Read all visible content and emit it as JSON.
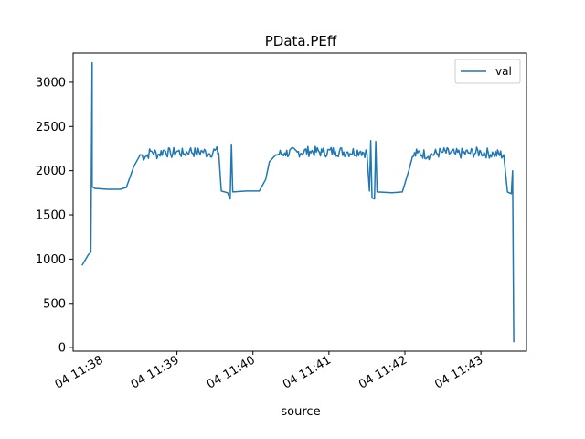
{
  "chart_data": {
    "type": "line",
    "title": "PData.PEff",
    "xlabel": "source",
    "ylabel": "",
    "xlim": [
      "04 11:37:38",
      "04 11:43:36"
    ],
    "ylim": [
      -40,
      3330
    ],
    "yticks": [
      0,
      500,
      1000,
      1500,
      2000,
      2500,
      3000
    ],
    "xticks": [
      {
        "label": "04 11:38",
        "t": "11:38:00"
      },
      {
        "label": "04 11:39",
        "t": "11:39:00"
      },
      {
        "label": "04 11:40",
        "t": "11:40:00"
      },
      {
        "label": "04 11:41",
        "t": "11:41:00"
      },
      {
        "label": "04 11:42",
        "t": "11:42:00"
      },
      {
        "label": "04 11:43",
        "t": "11:43:00"
      }
    ],
    "grid": false,
    "legend": "top-right",
    "series": [
      {
        "name": "val",
        "color": "#1f77b4",
        "points": [
          [
            "11:37:45",
            930
          ],
          [
            "11:37:50",
            1050
          ],
          [
            "11:37:52",
            1080
          ],
          [
            "11:37:53",
            3220
          ],
          [
            "11:37:53",
            1820
          ],
          [
            "11:37:55",
            1800
          ],
          [
            "11:38:05",
            1790
          ],
          [
            "11:38:15",
            1790
          ],
          [
            "11:38:20",
            1810
          ],
          [
            "11:38:26",
            2050
          ],
          [
            "11:38:31",
            2180
          ],
          [
            "11:38:35",
            2160
          ],
          [
            "11:38:40",
            2220
          ],
          [
            "11:38:45",
            2180
          ],
          [
            "11:38:50",
            2230
          ],
          [
            "11:38:55",
            2190
          ],
          [
            "11:39:00",
            2220
          ],
          [
            "11:39:05",
            2190
          ],
          [
            "11:39:10",
            2230
          ],
          [
            "11:39:15",
            2200
          ],
          [
            "11:39:20",
            2220
          ],
          [
            "11:39:25",
            2190
          ],
          [
            "11:39:30",
            2230
          ],
          [
            "11:39:33",
            2200
          ],
          [
            "11:39:35",
            1770
          ],
          [
            "11:39:40",
            1750
          ],
          [
            "11:39:42",
            1680
          ],
          [
            "11:39:43",
            2300
          ],
          [
            "11:39:44",
            1760
          ],
          [
            "11:39:55",
            1770
          ],
          [
            "11:40:05",
            1770
          ],
          [
            "11:40:10",
            1900
          ],
          [
            "11:40:13",
            2100
          ],
          [
            "11:40:18",
            2180
          ],
          [
            "11:40:25",
            2200
          ],
          [
            "11:40:35",
            2210
          ],
          [
            "11:40:45",
            2220
          ],
          [
            "11:40:55",
            2210
          ],
          [
            "11:41:05",
            2220
          ],
          [
            "11:41:15",
            2210
          ],
          [
            "11:41:25",
            2220
          ],
          [
            "11:41:30",
            2200
          ],
          [
            "11:41:32",
            1770
          ],
          [
            "11:41:33",
            2340
          ],
          [
            "11:41:34",
            1690
          ],
          [
            "11:41:36",
            1680
          ],
          [
            "11:41:37",
            2330
          ],
          [
            "11:41:38",
            1760
          ],
          [
            "11:41:50",
            1750
          ],
          [
            "11:41:58",
            1760
          ],
          [
            "11:42:03",
            2000
          ],
          [
            "11:42:06",
            2160
          ],
          [
            "11:42:10",
            2200
          ],
          [
            "11:42:20",
            2180
          ],
          [
            "11:42:30",
            2210
          ],
          [
            "11:42:40",
            2190
          ],
          [
            "11:42:50",
            2200
          ],
          [
            "11:43:00",
            2210
          ],
          [
            "11:43:10",
            2190
          ],
          [
            "11:43:18",
            2180
          ],
          [
            "11:43:21",
            1760
          ],
          [
            "11:43:24",
            1740
          ],
          [
            "11:43:25",
            2000
          ],
          [
            "11:43:26",
            60
          ]
        ]
      }
    ]
  }
}
